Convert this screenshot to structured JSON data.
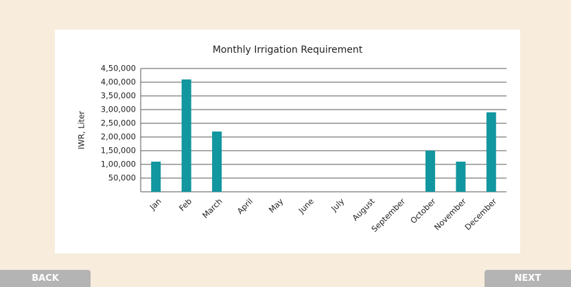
{
  "chart_data": {
    "type": "bar",
    "title": "Monthly Irrigation Requirement",
    "y_label": "IWR, Liter",
    "categories": [
      "Jan",
      "Feb",
      "March",
      "April",
      "May",
      "June",
      "July",
      "August",
      "September",
      "October",
      "November",
      "December"
    ],
    "values": [
      110000,
      410000,
      220000,
      0,
      0,
      0,
      0,
      0,
      0,
      150000,
      110000,
      290000
    ],
    "color": "#12969f",
    "ylim": [
      0,
      450000
    ],
    "yticks": [
      {
        "value": 50000,
        "label": "50,000"
      },
      {
        "value": 100000,
        "label": "1,00,000"
      },
      {
        "value": 150000,
        "label": "1,50,000"
      },
      {
        "value": 200000,
        "label": "2,00,000"
      },
      {
        "value": 250000,
        "label": "2,50,000"
      },
      {
        "value": 300000,
        "label": "3,00,000"
      },
      {
        "value": 350000,
        "label": "3,50,000"
      },
      {
        "value": 400000,
        "label": "4,00,000"
      },
      {
        "value": 450000,
        "label": "4,50,000"
      }
    ],
    "grid": true
  },
  "buttons": {
    "back": "BACK",
    "next": "NEXT"
  }
}
